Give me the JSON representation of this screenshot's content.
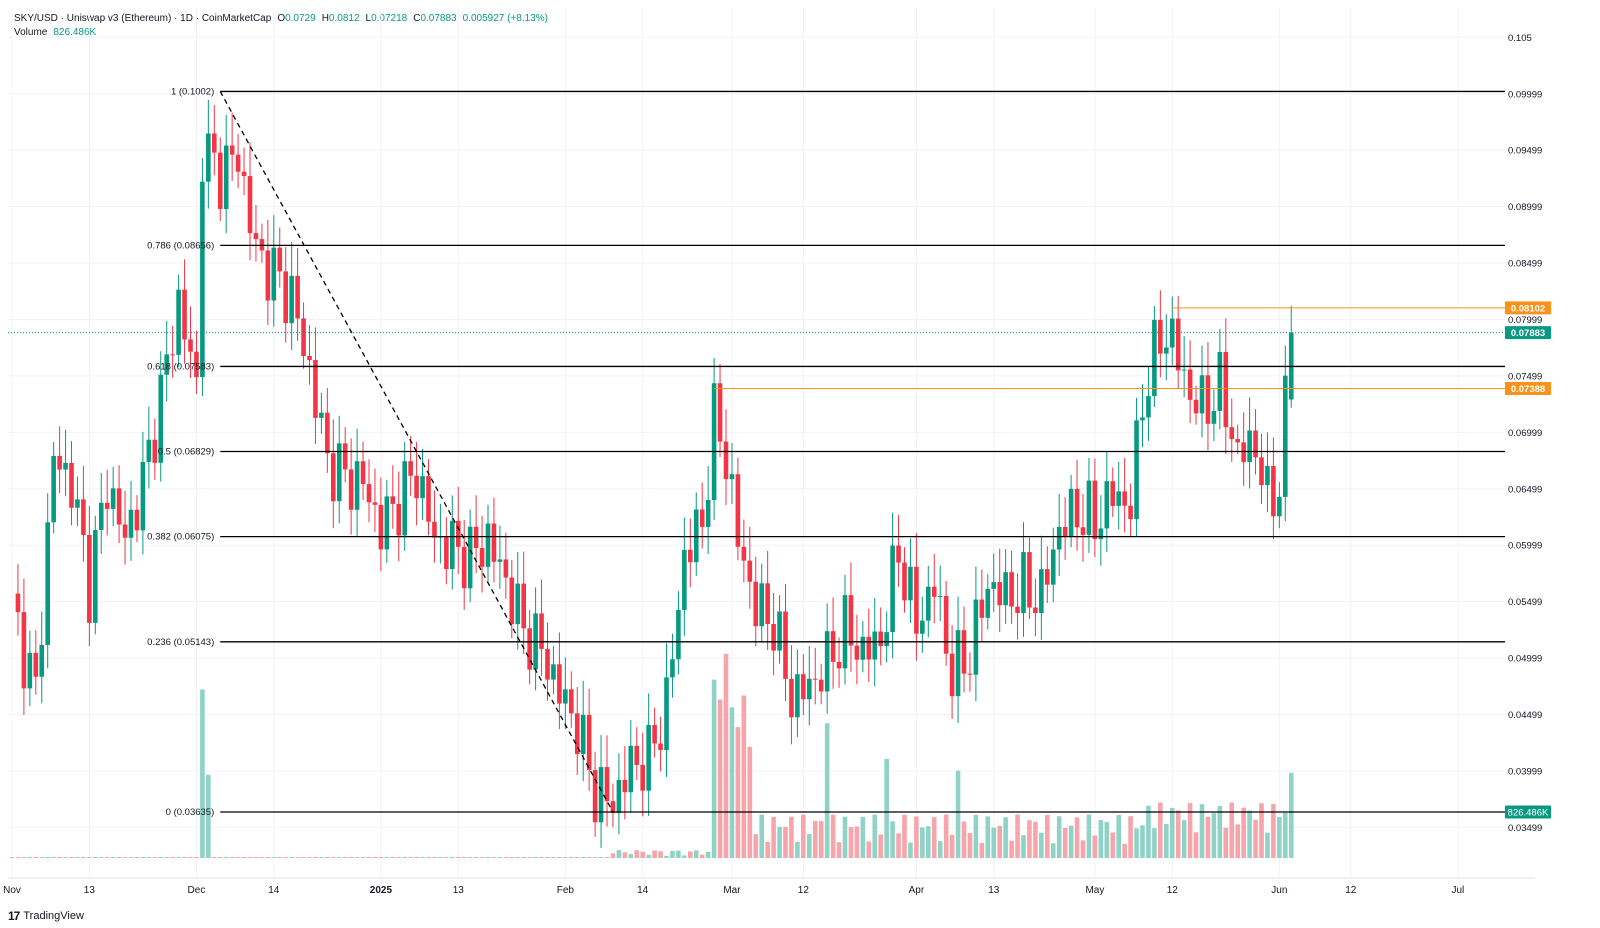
{
  "header": {
    "symbol": "SKY/USD · Uniswap v3 (Ethereum) · 1D · CoinMarketCap",
    "o_label": "O",
    "o": "0.0729",
    "h_label": "H",
    "h": "0.0812",
    "l_label": "L",
    "l": "0.07218",
    "c_label": "C",
    "c": "0.07883",
    "change": "0.005927 (+8.13%)",
    "volume_label": "Volume",
    "volume": "826.486K"
  },
  "branding": {
    "logo_mark": "17",
    "logo_text": "TradingView"
  },
  "colors": {
    "up": "#089981",
    "down": "#f23645",
    "up_vol": "#8fd3c7",
    "down_vol": "#f7a5ab",
    "orange": "#f7931a",
    "fib": "#000000"
  },
  "chart_data": {
    "type": "candlestick",
    "ylim": [
      0.0305,
      0.1052
    ],
    "y_ticks": [
      "0.105",
      "0.09999",
      "0.09499",
      "0.08999",
      "0.08499",
      "0.07999",
      "0.07499",
      "0.06999",
      "0.06499",
      "0.05999",
      "0.05499",
      "0.04999",
      "0.04499",
      "0.03999",
      "0.03499"
    ],
    "x_ticks": [
      "Nov",
      "13",
      "Dec",
      "14",
      "2025",
      "13",
      "Feb",
      "14",
      "Mar",
      "12",
      "Apr",
      "13",
      "May",
      "12",
      "Jun",
      "12",
      "Jul"
    ],
    "fib_levels": [
      {
        "label": "1 (0.1002)",
        "value": 0.1002
      },
      {
        "label": "0.786 (0.08656)",
        "value": 0.08656
      },
      {
        "label": "0.618 (0.07583)",
        "value": 0.07583
      },
      {
        "label": "0.5 (0.06829)",
        "value": 0.06829
      },
      {
        "label": "0.382 (0.06075)",
        "value": 0.06075
      },
      {
        "label": "0.236 (0.05143)",
        "value": 0.05143
      },
      {
        "label": "0 (0.03635)",
        "value": 0.03635
      }
    ],
    "price_tags": [
      {
        "label": "0.08102",
        "value": 0.08102
      },
      {
        "label": "0.07883",
        "value": 0.07883
      },
      {
        "label": "0.07388",
        "value": 0.07388
      }
    ],
    "volume_tag": "826.486K",
    "anchors": [
      [
        "2024-10-31",
        0.0545
      ],
      [
        "2024-11-04",
        0.0468
      ],
      [
        "2024-11-07",
        0.0678
      ],
      [
        "2024-11-10",
        0.0655
      ],
      [
        "2024-11-13",
        0.0565
      ],
      [
        "2024-11-16",
        0.0655
      ],
      [
        "2024-11-19",
        0.0605
      ],
      [
        "2024-11-22",
        0.0655
      ],
      [
        "2024-11-25",
        0.0732
      ],
      [
        "2024-11-28",
        0.0815
      ],
      [
        "2024-12-01",
        0.074
      ],
      [
        "2024-12-02",
        0.095
      ],
      [
        "2024-12-05",
        0.093
      ],
      [
        "2024-12-08",
        0.0945
      ],
      [
        "2024-12-11",
        0.086
      ],
      [
        "2024-12-14",
        0.084
      ],
      [
        "2024-12-17",
        0.082
      ],
      [
        "2024-12-20",
        0.0755
      ],
      [
        "2024-12-23",
        0.0675
      ],
      [
        "2024-12-26",
        0.066
      ],
      [
        "2024-12-29",
        0.0655
      ],
      [
        "2025-01-01",
        0.0615
      ],
      [
        "2025-01-04",
        0.064
      ],
      [
        "2025-01-07",
        0.0665
      ],
      [
        "2025-01-10",
        0.0605
      ],
      [
        "2025-01-13",
        0.0598
      ],
      [
        "2025-01-16",
        0.059
      ],
      [
        "2025-01-19",
        0.0605
      ],
      [
        "2025-01-22",
        0.0568
      ],
      [
        "2025-01-25",
        0.0525
      ],
      [
        "2025-01-28",
        0.0508
      ],
      [
        "2025-01-31",
        0.047
      ],
      [
        "2025-02-03",
        0.044
      ],
      [
        "2025-02-06",
        0.0382
      ],
      [
        "2025-02-09",
        0.0372
      ],
      [
        "2025-02-12",
        0.0405
      ],
      [
        "2025-02-15",
        0.041
      ],
      [
        "2025-02-18",
        0.046
      ],
      [
        "2025-02-21",
        0.059
      ],
      [
        "2025-02-24",
        0.062
      ],
      [
        "2025-02-26",
        0.0712
      ],
      [
        "2025-02-28",
        0.068
      ],
      [
        "2025-03-02",
        0.0605
      ],
      [
        "2025-03-05",
        0.0545
      ],
      [
        "2025-03-08",
        0.0532
      ],
      [
        "2025-03-11",
        0.0465
      ],
      [
        "2025-03-14",
        0.0475
      ],
      [
        "2025-03-17",
        0.0495
      ],
      [
        "2025-03-20",
        0.0525
      ],
      [
        "2025-03-23",
        0.0505
      ],
      [
        "2025-03-26",
        0.0515
      ],
      [
        "2025-03-29",
        0.0595
      ],
      [
        "2025-04-01",
        0.053
      ],
      [
        "2025-04-04",
        0.0565
      ],
      [
        "2025-04-07",
        0.0485
      ],
      [
        "2025-04-10",
        0.0505
      ],
      [
        "2025-04-13",
        0.0565
      ],
      [
        "2025-04-16",
        0.0555
      ],
      [
        "2025-04-19",
        0.056
      ],
      [
        "2025-04-22",
        0.0555
      ],
      [
        "2025-04-25",
        0.0615
      ],
      [
        "2025-04-28",
        0.063
      ],
      [
        "2025-05-01",
        0.062
      ],
      [
        "2025-05-04",
        0.0645
      ],
      [
        "2025-05-07",
        0.0635
      ],
      [
        "2025-05-09",
        0.073
      ],
      [
        "2025-05-12",
        0.0785
      ],
      [
        "2025-05-14",
        0.0785
      ],
      [
        "2025-05-16",
        0.0745
      ],
      [
        "2025-05-19",
        0.072
      ],
      [
        "2025-05-22",
        0.074
      ],
      [
        "2025-05-25",
        0.068
      ],
      [
        "2025-05-28",
        0.069
      ],
      [
        "2025-05-30",
        0.0638
      ],
      [
        "2025-06-01",
        0.0655
      ],
      [
        "2025-06-03",
        0.0788
      ]
    ],
    "volume_spikes": [
      [
        "2024-12-02",
        8.5
      ],
      [
        "2024-12-03",
        4.2
      ],
      [
        "2025-02-26",
        9.0
      ],
      [
        "2025-02-27",
        8.0
      ],
      [
        "2025-02-28",
        10.3
      ],
      [
        "2025-03-01",
        7.6
      ],
      [
        "2025-03-02",
        6.6
      ],
      [
        "2025-03-03",
        8.2
      ],
      [
        "2025-03-04",
        5.6
      ],
      [
        "2025-03-17",
        6.8
      ],
      [
        "2025-03-27",
        5.0
      ],
      [
        "2025-04-08",
        4.4
      ],
      [
        "2025-06-03",
        4.3
      ]
    ],
    "series": [
      {
        "name": "Volume",
        "values": "daily"
      }
    ]
  }
}
